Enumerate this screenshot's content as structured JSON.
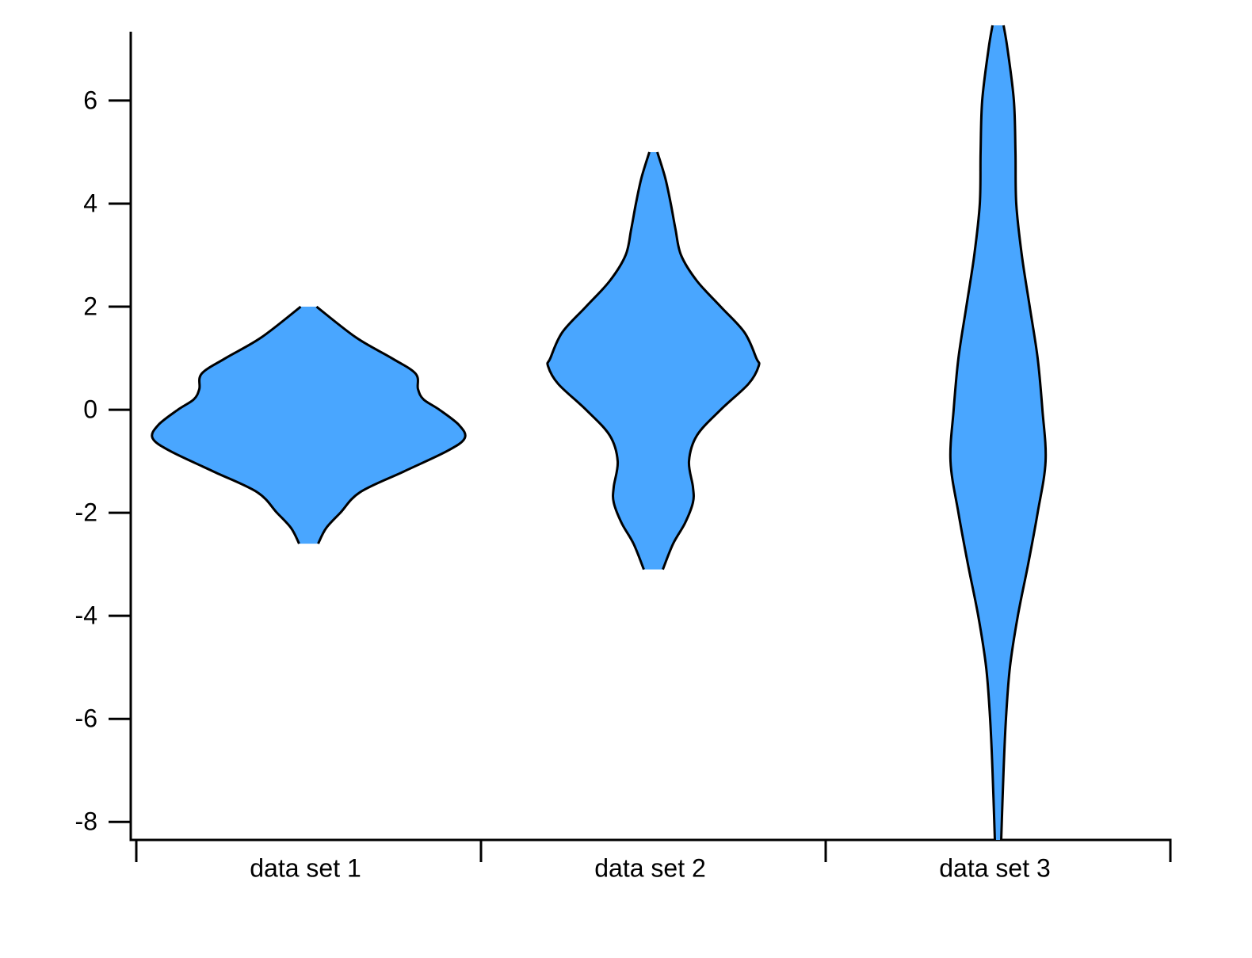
{
  "chart_data": {
    "type": "violin",
    "categories": [
      "data set 1",
      "data set 2",
      "data set 3"
    ],
    "color": "#49a6ff",
    "edge_color": "#000000",
    "ylim": [
      -8.35,
      7.46
    ],
    "yticks": [
      -8,
      -6,
      -4,
      -2,
      0,
      2,
      4,
      6
    ],
    "series": [
      {
        "values": [
          2,
          1.4,
          1,
          0.7,
          0.4,
          0.2,
          0,
          -0.3,
          -0.55,
          -0.8,
          -1.2,
          -1.6,
          -2,
          -2.3,
          -2.6
        ],
        "density": [
          0.1,
          0.6,
          1.05,
          1.35,
          1.38,
          1.45,
          1.65,
          1.9,
          1.97,
          1.75,
          1.2,
          0.65,
          0.4,
          0.22,
          0.12
        ]
      },
      {
        "values": [
          5,
          4.5,
          4,
          3.5,
          3,
          2.5,
          2,
          1.5,
          1,
          0.85,
          0.5,
          0,
          -0.5,
          -1,
          -1.5,
          -1.8,
          -2.2,
          -2.6,
          -3.1
        ],
        "density": [
          0.05,
          0.15,
          0.22,
          0.28,
          0.35,
          0.55,
          0.85,
          1.15,
          1.3,
          1.33,
          1.2,
          0.85,
          0.55,
          0.45,
          0.5,
          0.5,
          0.4,
          0.25,
          0.12
        ]
      },
      {
        "values": [
          7.46,
          7,
          6,
          5,
          4,
          3,
          2,
          1,
          0,
          -1,
          -2,
          -3,
          -4,
          -5,
          -6,
          -7,
          -8.35
        ],
        "density": [
          0.07,
          0.12,
          0.2,
          0.22,
          0.23,
          0.3,
          0.4,
          0.5,
          0.56,
          0.6,
          0.5,
          0.38,
          0.25,
          0.15,
          0.1,
          0.07,
          0.04
        ]
      }
    ]
  }
}
